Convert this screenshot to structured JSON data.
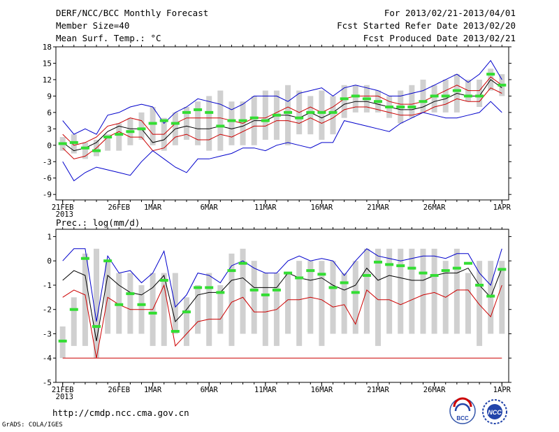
{
  "header": {
    "title": "DERF/NCC/BCC Monthly Forecast",
    "member_size": "Member Size=40",
    "variable": "Mean Surf. Temp.: °C",
    "period": "For 2013/02/21-2013/04/01",
    "start_date": "Fcst Started Refer Date 2013/02/20",
    "produced_date": "Fcst Produced Date 2013/02/21"
  },
  "chart_data": [
    {
      "type": "line",
      "title": "Mean Surf. Temp.: °C",
      "ylim": [
        -10,
        18
      ],
      "yticks": [
        -9,
        -6,
        -3,
        0,
        3,
        6,
        9,
        12,
        15,
        18
      ],
      "xtick_labels": [
        "21FEB",
        "26FEB",
        "1MAR",
        "6MAR",
        "11MAR",
        "16MAR",
        "21MAR",
        "26MAR",
        "1APR"
      ],
      "xtick_days": [
        0,
        5,
        8,
        13,
        18,
        23,
        28,
        33,
        39
      ],
      "x_year_label": "2013",
      "days": 40,
      "box_low": [
        -1,
        -1.5,
        -2.5,
        -2,
        -1,
        -1,
        0,
        1,
        0,
        -1,
        0,
        1,
        0,
        -1,
        -1,
        0,
        0,
        0,
        1,
        1,
        0,
        2,
        2,
        1,
        2,
        5,
        6,
        6,
        6,
        5,
        4,
        5,
        6,
        6,
        6,
        6,
        8,
        7,
        10,
        9
      ],
      "box_high": [
        1.5,
        2,
        0.5,
        1,
        2,
        4,
        5,
        6,
        7,
        5,
        6,
        7,
        8,
        9,
        10,
        8,
        8,
        9,
        10,
        10,
        11,
        10,
        9,
        10,
        9,
        11,
        11,
        11,
        10,
        9,
        10,
        11,
        12,
        11,
        12,
        13,
        12,
        12,
        14,
        13
      ],
      "green": [
        0.3,
        0.5,
        -0.5,
        -1,
        1.5,
        2,
        2.5,
        3,
        4,
        4.5,
        4,
        6,
        6.5,
        6,
        3.5,
        4.5,
        4.5,
        5,
        4.5,
        5.5,
        6,
        5,
        6,
        6,
        6,
        8.5,
        9,
        8.5,
        8,
        7,
        7,
        7,
        8,
        9,
        9,
        10,
        9,
        9,
        13,
        11
      ],
      "series": [
        {
          "name": "max",
          "color": "#0000cc",
          "values": [
            4.5,
            2,
            3,
            2,
            5.5,
            6,
            7,
            7.5,
            7,
            4,
            6,
            7,
            8.5,
            8,
            7.5,
            6.5,
            7.5,
            9,
            9,
            9,
            8,
            9.5,
            10,
            10.5,
            9,
            10.5,
            11,
            10.5,
            10,
            9,
            9,
            9.5,
            10,
            11,
            12,
            13,
            11.5,
            13,
            15.5,
            12
          ]
        },
        {
          "name": "upper",
          "color": "#cc0000",
          "values": [
            2,
            0,
            0.5,
            1.5,
            3.5,
            4,
            5,
            4.5,
            2,
            2,
            4,
            5,
            5,
            5,
            5,
            4.5,
            4,
            5,
            5,
            6,
            7,
            6,
            7,
            6,
            7,
            8.5,
            9,
            9,
            9,
            8,
            7.5,
            7.5,
            8,
            9,
            10,
            11,
            10,
            10,
            12.5,
            11
          ]
        },
        {
          "name": "mean",
          "color": "#000000",
          "values": [
            0.5,
            -1,
            -0.5,
            0.5,
            2.5,
            3.5,
            3,
            3,
            0.5,
            1,
            3,
            3.5,
            3,
            3,
            3.5,
            3,
            3.5,
            4.5,
            4.5,
            5.5,
            5.5,
            5,
            6,
            5,
            6,
            7.5,
            8,
            8,
            7.5,
            7,
            6.5,
            6.5,
            7,
            8,
            8.5,
            9.5,
            9,
            9,
            12,
            10.5
          ]
        },
        {
          "name": "lower",
          "color": "#cc0000",
          "values": [
            -0.5,
            -2.5,
            -2,
            -0.5,
            1.5,
            2.5,
            1.5,
            1.5,
            -1,
            -0.5,
            1.5,
            2,
            1,
            1,
            2,
            1.5,
            2.5,
            3.5,
            3.5,
            4.5,
            4.5,
            4,
            5,
            4,
            5,
            6.5,
            7,
            7,
            6.5,
            6,
            5.5,
            5.5,
            6,
            7,
            7.5,
            8.5,
            8,
            8,
            10.5,
            9.5
          ]
        },
        {
          "name": "min",
          "color": "#0000cc",
          "values": [
            -3,
            -6.5,
            -5,
            -4,
            -4.5,
            -5,
            -5.5,
            -3,
            -1,
            -2.5,
            -4,
            -5,
            -2.5,
            -2.5,
            -2,
            -1.5,
            -0.5,
            -0.5,
            -1,
            0,
            0.5,
            0,
            -0.5,
            0.5,
            0.5,
            4.5,
            4,
            3.5,
            3,
            2.5,
            4,
            5,
            6,
            5.5,
            5,
            5,
            5.5,
            6,
            8,
            6
          ]
        }
      ]
    },
    {
      "type": "line",
      "title": "Prec.: log(mm/d)",
      "ylim": [
        -5,
        1.3
      ],
      "yticks": [
        -5,
        -4,
        -3,
        -2,
        -1,
        0,
        1
      ],
      "xtick_labels": [
        "21FEB",
        "26FEB",
        "1MAR",
        "6MAR",
        "11MAR",
        "16MAR",
        "21MAR",
        "26MAR",
        "1APR"
      ],
      "xtick_days": [
        0,
        5,
        8,
        13,
        18,
        23,
        28,
        33,
        39
      ],
      "x_year_label": "2013",
      "days": 40,
      "box_low": [
        -4,
        -3.5,
        -3.5,
        -4,
        -3,
        -3,
        -3,
        -3,
        -3.5,
        -3.5,
        -3,
        -3.5,
        -3,
        -3.5,
        -3,
        -3.5,
        -3,
        -3,
        -3.5,
        -3.5,
        -3,
        -3.5,
        -3,
        -3.5,
        -3,
        -3,
        -3,
        -3,
        -3.5,
        -3,
        -3,
        -3,
        -3,
        -3,
        -3,
        -3,
        -3,
        -3.5,
        -3,
        -3
      ],
      "box_high": [
        -2.7,
        -1.5,
        0.3,
        0.5,
        0,
        -0.5,
        -0.5,
        -1,
        -0.5,
        -0.5,
        -0.5,
        -1.5,
        -1,
        -0.5,
        -1,
        0.3,
        0.5,
        0,
        -0.5,
        -0.5,
        -0.5,
        0,
        0,
        0,
        0,
        -0.5,
        0,
        0.5,
        0.5,
        0.5,
        0.5,
        0.5,
        0.5,
        0.5,
        0,
        0.5,
        -0.5,
        0,
        0,
        0
      ],
      "green": [
        -3.3,
        -2,
        0.1,
        -2.7,
        0,
        -1.8,
        -1.35,
        -1.8,
        -2.15,
        -0.8,
        -2.9,
        -2.1,
        -1.1,
        -1.1,
        -1.3,
        -0.4,
        -0.1,
        -1.2,
        -1.4,
        -1.2,
        -0.5,
        -0.7,
        -0.4,
        -0.55,
        -1.1,
        -0.9,
        -1.3,
        -0.6,
        -0.05,
        -0.15,
        -0.2,
        -0.3,
        -0.5,
        -0.6,
        -0.4,
        -0.3,
        -0.1,
        -1,
        -1.45,
        -0.35
      ],
      "series": [
        {
          "name": "max",
          "color": "#0000cc",
          "values": [
            0,
            0.5,
            0.5,
            -2.5,
            0.2,
            -0.5,
            -0.4,
            -0.9,
            -0.5,
            0.4,
            -1.9,
            -1.4,
            -0.5,
            -0.6,
            -0.9,
            -0.2,
            0,
            -0.3,
            -0.5,
            -0.5,
            0,
            0.2,
            0,
            0.1,
            0,
            -0.6,
            0,
            0.5,
            0.2,
            0.1,
            0,
            0.1,
            0.2,
            0.2,
            0.1,
            0.3,
            0.3,
            -0.5,
            -1,
            0.5
          ]
        },
        {
          "name": "upper",
          "color": "#000000",
          "values": [
            -0.8,
            -0.4,
            -0.6,
            -3.3,
            -0.6,
            -1,
            -1.3,
            -1.4,
            -1.1,
            -0.6,
            -2.5,
            -2,
            -1.4,
            -1.3,
            -1.3,
            -0.8,
            -0.7,
            -1.1,
            -1.1,
            -1.1,
            -0.5,
            -0.7,
            -0.8,
            -0.7,
            -1,
            -1.2,
            -1,
            -0.3,
            -0.8,
            -0.6,
            -0.7,
            -0.8,
            -0.8,
            -0.6,
            -0.5,
            -0.5,
            -0.3,
            -1,
            -1.5,
            -0.3
          ]
        },
        {
          "name": "lower",
          "color": "#cc0000",
          "values": [
            -1.5,
            -1.2,
            -1.4,
            -4,
            -1.5,
            -1.8,
            -2,
            -2,
            -2,
            -1,
            -3.5,
            -3,
            -2.5,
            -2.4,
            -2.4,
            -1.7,
            -1.5,
            -2.1,
            -2.1,
            -2,
            -1.6,
            -1.6,
            -1.5,
            -1.6,
            -1.9,
            -1.8,
            -2.6,
            -1.2,
            -1.6,
            -1.6,
            -1.8,
            -1.6,
            -1.4,
            -1.3,
            -1.5,
            -1.2,
            -1.2,
            -1.8,
            -2.3,
            -1
          ]
        },
        {
          "name": "bottom",
          "color": "#cc0000",
          "values": [
            -4,
            -4,
            -4,
            -4,
            -4,
            -4,
            -4,
            -4,
            -4,
            -4,
            -4,
            -4,
            -4,
            -4,
            -4,
            -4,
            -4,
            -4,
            -4,
            -4,
            -4,
            -4,
            -4,
            -4,
            -4,
            -4,
            -4,
            -4,
            -4,
            -4,
            -4,
            -4,
            -4,
            -4,
            -4,
            -4,
            -4,
            -4,
            -4,
            -4
          ]
        }
      ]
    }
  ],
  "panel2_label": "Prec.: log(mm/d)",
  "footer": {
    "url": "http://cmdp.ncc.cma.gov.cn",
    "grads": "GrADS: COLA/IGES",
    "logo_bcc": "BCC",
    "logo_ncc": "NCC"
  }
}
